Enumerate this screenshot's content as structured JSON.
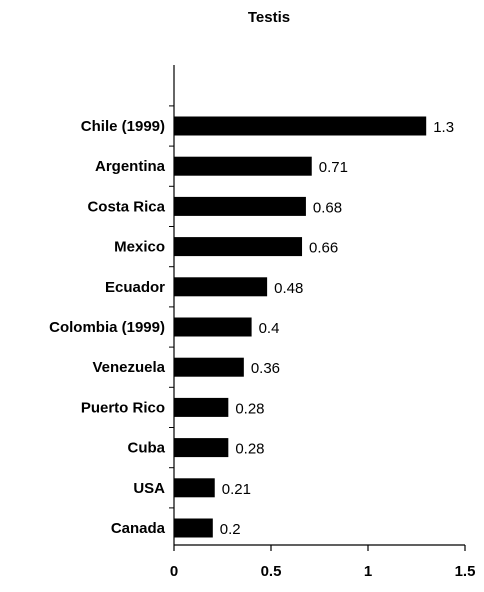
{
  "chart_data": {
    "type": "bar",
    "orientation": "horizontal",
    "title": "Testis",
    "xlabel": "",
    "ylabel": "",
    "categories": [
      "Chile (1999)",
      "Argentina",
      "Costa Rica",
      "Mexico",
      "Ecuador",
      "Colombia (1999)",
      "Venezuela",
      "Puerto Rico",
      "Cuba",
      "USA",
      "Canada"
    ],
    "values": [
      1.3,
      0.71,
      0.68,
      0.66,
      0.48,
      0.4,
      0.36,
      0.28,
      0.28,
      0.21,
      0.2
    ],
    "value_labels": [
      "1.3",
      "0.71",
      "0.68",
      "0.66",
      "0.48",
      "0.4",
      "0.36",
      "0.28",
      "0.28",
      "0.21",
      "0.2"
    ],
    "xlim": [
      0,
      1.5
    ],
    "xticks": [
      0,
      0.5,
      1,
      1.5
    ],
    "xtick_labels": [
      "0",
      "0.5",
      "1",
      "1.5"
    ],
    "grid": false,
    "legend": "none",
    "bar_color": "#000000"
  }
}
